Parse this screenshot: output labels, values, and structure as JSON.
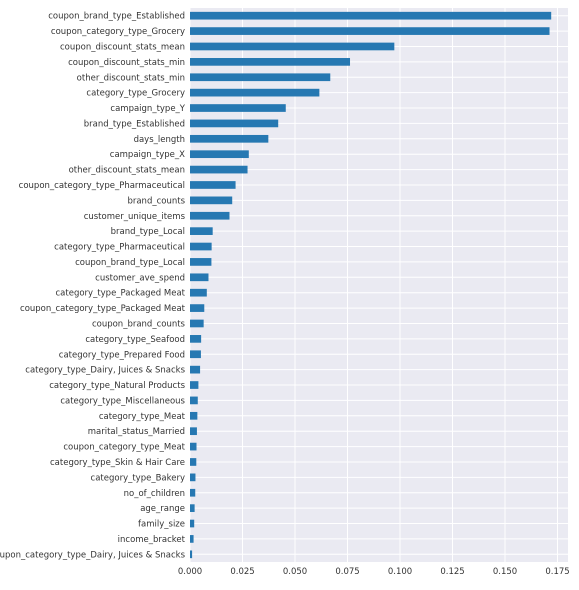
{
  "chart_data": {
    "type": "bar",
    "orientation": "horizontal",
    "title": "",
    "xlabel": "",
    "ylabel": "",
    "xlim": [
      0,
      0.18
    ],
    "grid": true,
    "legend": "none",
    "bar_color": "#2678b2",
    "background_color": "#eaeaf2",
    "grid_color": "#ffffff",
    "text_color": "#333333",
    "x_ticks": [
      0.0,
      0.025,
      0.05,
      0.075,
      0.1,
      0.125,
      0.15,
      0.175
    ],
    "x_tick_labels": [
      "0.000",
      "0.025",
      "0.050",
      "0.075",
      "0.100",
      "0.125",
      "0.150",
      "0.175"
    ],
    "categories": [
      "coupon_brand_type_Established",
      "coupon_category_type_Grocery",
      "coupon_discount_stats_mean",
      "coupon_discount_stats_min",
      "other_discount_stats_min",
      "category_type_Grocery",
      "campaign_type_Y",
      "brand_type_Established",
      "days_length",
      "campaign_type_X",
      "other_discount_stats_mean",
      "coupon_category_type_Pharmaceutical",
      "brand_counts",
      "customer_unique_items",
      "brand_type_Local",
      "category_type_Pharmaceutical",
      "coupon_brand_type_Local",
      "customer_ave_spend",
      "category_type_Packaged Meat",
      "coupon_category_type_Packaged Meat",
      "coupon_brand_counts",
      "category_type_Seafood",
      "category_type_Prepared Food",
      "category_type_Dairy, Juices & Snacks",
      "category_type_Natural Products",
      "category_type_Miscellaneous",
      "category_type_Meat",
      "marital_status_Married",
      "coupon_category_type_Meat",
      "category_type_Skin & Hair Care",
      "category_type_Bakery",
      "no_of_children",
      "age_range",
      "family_size",
      "income_bracket",
      "coupon_category_type_Dairy, Juices & Snacks"
    ],
    "values": [
      0.172,
      0.1712,
      0.0973,
      0.0762,
      0.0668,
      0.0616,
      0.0456,
      0.042,
      0.0373,
      0.028,
      0.0274,
      0.0217,
      0.0201,
      0.0188,
      0.0108,
      0.0103,
      0.0102,
      0.0088,
      0.008,
      0.0068,
      0.0065,
      0.0053,
      0.0052,
      0.0048,
      0.004,
      0.0037,
      0.0035,
      0.0033,
      0.0031,
      0.003,
      0.0026,
      0.0025,
      0.0022,
      0.002,
      0.0017,
      0.001
    ]
  }
}
